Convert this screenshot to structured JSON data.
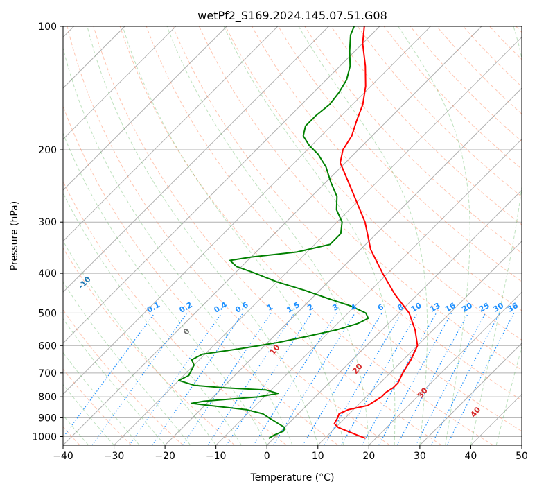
{
  "chart_data": {
    "type": "line",
    "chart_kind": "skew-T log-P sounding",
    "title": "wetPf2_S169.2024.145.07.51.G08",
    "xlabel": "Temperature (°C)",
    "ylabel": "Pressure (hPa)",
    "xlim": [
      -40,
      50
    ],
    "ylim": [
      1050,
      100
    ],
    "y_scale": "log",
    "grid": true,
    "x_ticks": [
      -40,
      -30,
      -20,
      -10,
      0,
      10,
      20,
      30,
      40,
      50
    ],
    "y_ticks": [
      100,
      200,
      300,
      400,
      500,
      600,
      700,
      800,
      900,
      1000
    ],
    "series": [
      {
        "color": "#ff0000",
        "pressure": [
          1010,
          990,
          970,
          950,
          930,
          900,
          880,
          860,
          840,
          820,
          800,
          780,
          760,
          740,
          720,
          700,
          650,
          600,
          550,
          500,
          450,
          400,
          350,
          300,
          250,
          215,
          200,
          185,
          170,
          155,
          140,
          125,
          110,
          100
        ],
        "temperature": [
          18.0,
          15.5,
          13.0,
          10.5,
          9.0,
          8.5,
          8.0,
          9.0,
          12.0,
          12.5,
          13.0,
          13.0,
          13.5,
          13.5,
          13.0,
          12.5,
          11.5,
          10.0,
          6.5,
          2.0,
          -4.5,
          -11.0,
          -18.0,
          -24.5,
          -33.5,
          -41.0,
          -43.0,
          -44.0,
          -46.0,
          -48.0,
          -51.0,
          -55.0,
          -60.0,
          -63.0
        ]
      },
      {
        "color": "#008000",
        "pressure": [
          1010,
          990,
          970,
          950,
          930,
          900,
          880,
          860,
          840,
          830,
          820,
          800,
          785,
          770,
          760,
          750,
          730,
          710,
          690,
          670,
          650,
          630,
          610,
          590,
          570,
          550,
          530,
          515,
          500,
          480,
          460,
          440,
          420,
          400,
          385,
          372,
          365,
          355,
          340,
          320,
          300,
          280,
          260,
          240,
          220,
          205,
          195,
          185,
          175,
          165,
          155,
          145,
          135,
          125,
          115,
          105,
          100
        ],
        "temperature": [
          -1.0,
          -0.5,
          0.5,
          0.0,
          -2.0,
          -5.0,
          -7.0,
          -11.0,
          -19.0,
          -23.0,
          -21.0,
          -11.0,
          -8.0,
          -11.0,
          -20.0,
          -26.0,
          -30.0,
          -29.0,
          -29.5,
          -30.0,
          -31.5,
          -30.5,
          -24.0,
          -18.0,
          -13.5,
          -9.0,
          -6.0,
          -5.0,
          -6.5,
          -11.0,
          -17.0,
          -23.0,
          -30.0,
          -36.0,
          -41.0,
          -43.5,
          -40.0,
          -32.0,
          -27.0,
          -27.0,
          -29.0,
          -32.5,
          -35.0,
          -39.0,
          -43.0,
          -47.0,
          -50.5,
          -53.5,
          -55.0,
          -55.0,
          -54.5,
          -55.0,
          -56.0,
          -58.0,
          -61.0,
          -64.0,
          -65.0
        ]
      }
    ],
    "dry_adiabats_C": [
      -100,
      -90,
      -80,
      -70,
      -60,
      -50,
      -40,
      -30,
      -20,
      -10
    ],
    "moist_adiabats_C": [
      0,
      10,
      20,
      30,
      40
    ],
    "mixing_ratio_lines_gkg": [
      0.1,
      0.2,
      0.4,
      0.6,
      1,
      1.5,
      2,
      3,
      4,
      6,
      8,
      10,
      13,
      16,
      20,
      25,
      30,
      36
    ]
  }
}
